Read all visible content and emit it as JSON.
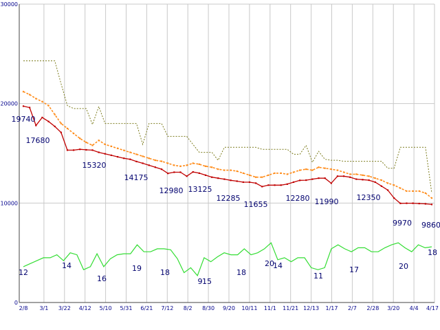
{
  "chart_data": {
    "type": "line",
    "title": "",
    "xlabel": "",
    "ylabel": "",
    "ylim": [
      0,
      30000
    ],
    "y_ticks": [
      "0",
      "10000",
      "20000",
      "30000"
    ],
    "x_tick_labels": [
      "2/8",
      "3/1",
      "3/22",
      "4/12",
      "5/10",
      "5/31",
      "6/21",
      "7/12",
      "8/2",
      "8/30",
      "9/20",
      "10/11",
      "11/1",
      "11/21",
      "12/13",
      "1/17",
      "2/7",
      "2/28",
      "3/20",
      "4/4",
      "4/17"
    ],
    "grid": true,
    "legend": "none",
    "colors": {
      "price": "#c00000",
      "average": "#ff8c1a",
      "band": "#7a7a1a",
      "volume": "#33dd33",
      "grid": "#c8c8c8",
      "text": "#00008b"
    },
    "price_labels": [
      "19740",
      "17680",
      "15320",
      "14175",
      "12980",
      "13125",
      "12285",
      "11655",
      "12280",
      "11990",
      "12350",
      "9970",
      "9860"
    ],
    "volume_labels": [
      "12",
      "14",
      "16",
      "19",
      "18",
      "9",
      "15",
      "18",
      "20",
      "14",
      "11",
      "17",
      "20",
      "18"
    ],
    "series": [
      {
        "key": "price",
        "values": [
          19740,
          19600,
          17800,
          18600,
          18200,
          17700,
          17100,
          15320,
          15320,
          15400,
          15350,
          15320,
          15100,
          14950,
          14800,
          14650,
          14500,
          14400,
          14175,
          14000,
          13800,
          13600,
          13400,
          12980,
          13100,
          13100,
          12700,
          13125,
          13000,
          12800,
          12600,
          12500,
          12400,
          12285,
          12200,
          12100,
          12100,
          12000,
          11655,
          11800,
          11800,
          11800,
          11900,
          12100,
          12280,
          12300,
          12400,
          12500,
          12500,
          11990,
          12700,
          12700,
          12600,
          12400,
          12350,
          12300,
          12100,
          11700,
          11300,
          10500,
          9970,
          9980,
          9980,
          9950,
          9920,
          9860
        ]
      },
      {
        "key": "average",
        "values": [
          21200,
          20900,
          20500,
          20200,
          19800,
          18900,
          18000,
          17500,
          17000,
          16500,
          16100,
          15800,
          16300,
          15900,
          15700,
          15500,
          15300,
          15100,
          14900,
          14700,
          14500,
          14300,
          14200,
          14000,
          13800,
          13700,
          13800,
          14000,
          13900,
          13700,
          13600,
          13400,
          13300,
          13300,
          13200,
          13000,
          12800,
          12600,
          12600,
          12800,
          13000,
          13000,
          12900,
          13100,
          13300,
          13400,
          13300,
          13600,
          13500,
          13400,
          13300,
          13100,
          12900,
          12900,
          12800,
          12700,
          12500,
          12300,
          12000,
          11800,
          11500,
          11200,
          11200,
          11200,
          11000,
          10500
        ]
      },
      {
        "key": "band",
        "values": [
          24300,
          24300,
          24300,
          24300,
          24300,
          24300,
          22000,
          19800,
          19500,
          19500,
          19500,
          17900,
          19700,
          18000,
          18000,
          18000,
          18000,
          18000,
          18000,
          15900,
          18000,
          18000,
          18000,
          16700,
          16700,
          16700,
          16700,
          15900,
          15100,
          15100,
          15100,
          14300,
          15600,
          15600,
          15600,
          15600,
          15600,
          15600,
          15400,
          15400,
          15400,
          15400,
          15400,
          14900,
          14900,
          15800,
          14100,
          15200,
          14400,
          14300,
          14300,
          14200,
          14200,
          14200,
          14200,
          14200,
          14200,
          14200,
          13500,
          13500,
          15600,
          15600,
          15600,
          15600,
          15600,
          11000
        ]
      },
      {
        "key": "volume",
        "values": [
          3600,
          3900,
          4200,
          4500,
          4500,
          4800,
          4200,
          5000,
          4800,
          3300,
          3600,
          4900,
          3600,
          4400,
          4800,
          4900,
          4900,
          5800,
          5100,
          5100,
          5400,
          5400,
          5300,
          4400,
          3000,
          3500,
          2700,
          4500,
          4100,
          4600,
          5000,
          4800,
          4800,
          5400,
          4800,
          5000,
          5400,
          6000,
          4300,
          4500,
          4100,
          4500,
          4500,
          3500,
          3300,
          3500,
          5400,
          5800,
          5400,
          5100,
          5500,
          5500,
          5100,
          5100,
          5500,
          5800,
          6000,
          5500,
          5100,
          5800,
          5500,
          5600
        ]
      }
    ]
  }
}
